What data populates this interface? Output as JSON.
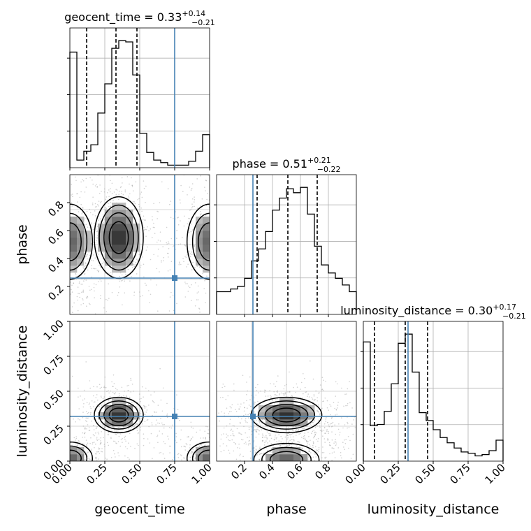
{
  "chart_data": {
    "type": "corner",
    "parameters": [
      "geocent_time",
      "phase",
      "luminosity_distance"
    ],
    "truth": {
      "geocent_time": 0.75,
      "phase": 0.26,
      "luminosity_distance": 0.32,
      "color": "#4682b4"
    },
    "colors": {
      "hist_line": "#000000",
      "quantile": "#000000",
      "grid": "#b0b0b0",
      "truth": "#4682b4"
    },
    "panels": {
      "geocent_time": {
        "title_prefix": "geocent_time = 0.33",
        "title_sup": "+0.14",
        "title_sub": "−0.21",
        "xlabel": "geocent_time",
        "range": [
          0.0,
          1.0
        ],
        "quantiles": [
          0.12,
          0.33,
          0.48
        ],
        "bins": [
          0.0,
          0.05,
          0.1,
          0.15,
          0.2,
          0.25,
          0.3,
          0.35,
          0.4,
          0.45,
          0.5,
          0.55,
          0.6,
          0.65,
          0.7,
          0.75,
          0.8,
          0.85,
          0.9,
          0.95,
          1.0
        ],
        "hist": [
          0.91,
          0.06,
          0.13,
          0.18,
          0.43,
          0.66,
          0.94,
          1.0,
          0.99,
          0.73,
          0.27,
          0.12,
          0.06,
          0.04,
          0.02,
          0.02,
          0.02,
          0.05,
          0.13,
          0.26
        ],
        "xticks": [
          "0.00",
          "0.25",
          "0.50",
          "0.75",
          "1.00"
        ]
      },
      "phase": {
        "title_prefix": "phase = 0.51",
        "title_sup": "+0.21",
        "title_sub": "−0.22",
        "xlabel": "phase",
        "ylabel": "phase",
        "range": [
          0.0,
          1.0
        ],
        "quantiles": [
          0.29,
          0.51,
          0.72
        ],
        "bins": [
          0.0,
          0.05,
          0.1,
          0.15,
          0.2,
          0.25,
          0.3,
          0.35,
          0.4,
          0.45,
          0.5,
          0.55,
          0.6,
          0.65,
          0.7,
          0.75,
          0.8,
          0.85,
          0.9,
          0.95,
          1.0
        ],
        "hist": [
          0.17,
          0.17,
          0.19,
          0.21,
          0.27,
          0.4,
          0.49,
          0.62,
          0.78,
          0.87,
          0.94,
          0.91,
          0.95,
          0.75,
          0.51,
          0.37,
          0.31,
          0.27,
          0.22,
          0.17
        ],
        "xticks": [
          "0.2",
          "0.4",
          "0.6",
          "0.8"
        ],
        "yticks": [
          "0.2",
          "0.4",
          "0.6",
          "0.8"
        ]
      },
      "luminosity_distance": {
        "title_prefix": "luminosity_distance = 0.30",
        "title_sup": "+0.17",
        "title_sub": "−0.21",
        "xlabel": "luminosity_distance",
        "ylabel": "luminosity_distance",
        "range": [
          0.0,
          1.0
        ],
        "quantiles": [
          0.08,
          0.3,
          0.46
        ],
        "bins": [
          0.0,
          0.05,
          0.1,
          0.15,
          0.2,
          0.25,
          0.3,
          0.35,
          0.4,
          0.45,
          0.5,
          0.55,
          0.6,
          0.65,
          0.7,
          0.75,
          0.8,
          0.85,
          0.9,
          0.95,
          1.0
        ],
        "hist": [
          0.91,
          0.27,
          0.28,
          0.38,
          0.59,
          0.9,
          0.97,
          0.68,
          0.37,
          0.31,
          0.24,
          0.18,
          0.14,
          0.1,
          0.07,
          0.06,
          0.04,
          0.05,
          0.08,
          0.16
        ],
        "xticks": [
          "0.00",
          "0.25",
          "0.50",
          "0.75",
          "1.00"
        ],
        "yticks": [
          "0.00",
          "0.25",
          "0.50",
          "0.75",
          "1.00"
        ]
      }
    },
    "joint": {
      "phase|geocent_time": {
        "peaks": [
          {
            "x": 0.35,
            "y": 0.55
          },
          {
            "x": 0.0,
            "y": 0.52
          },
          {
            "x": 1.0,
            "y": 0.52
          }
        ],
        "contour_levels": [
          0.15,
          0.3,
          0.5,
          0.75
        ]
      },
      "luminosity_distance|geocent_time": {
        "peaks": [
          {
            "x": 0.35,
            "y": 0.33
          },
          {
            "x": 0.0,
            "y": 0.02
          },
          {
            "x": 1.0,
            "y": 0.02
          }
        ],
        "contour_levels": [
          0.15,
          0.3,
          0.5,
          0.75
        ]
      },
      "luminosity_distance|phase": {
        "peaks": [
          {
            "x": 0.5,
            "y": 0.33
          },
          {
            "x": 0.5,
            "y": 0.01
          }
        ],
        "contour_levels": [
          0.15,
          0.3,
          0.5,
          0.75
        ]
      }
    },
    "grid": true
  }
}
